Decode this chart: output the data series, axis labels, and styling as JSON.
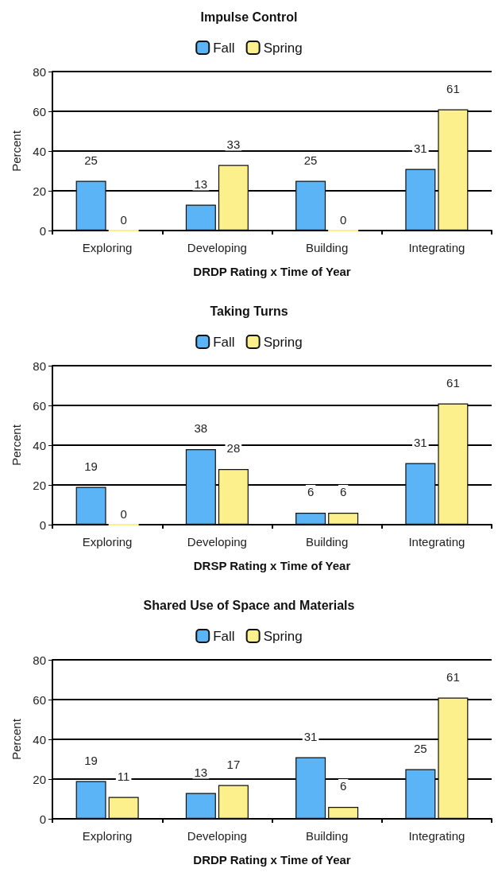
{
  "chart_data": [
    {
      "type": "bar",
      "title": "Impulse Control",
      "xlabel": "DRDP Rating x Time of Year",
      "ylabel": "Percent",
      "categories": [
        "Exploring",
        "Developing",
        "Building",
        "Integrating"
      ],
      "series": [
        {
          "name": "Fall",
          "color": "#5ab4f5",
          "values": [
            25,
            13,
            25,
            31
          ]
        },
        {
          "name": "Spring",
          "color": "#fcf08c",
          "values": [
            0,
            33,
            0,
            61
          ]
        }
      ],
      "ylim": [
        0,
        80
      ],
      "yticks": [
        0,
        20,
        40,
        60,
        80
      ],
      "grid": "y",
      "legend": "top",
      "data_labels": true
    },
    {
      "type": "bar",
      "title": "Taking Turns",
      "xlabel": "DRSP Rating x Time of Year",
      "ylabel": "Percent",
      "categories": [
        "Exploring",
        "Developing",
        "Building",
        "Integrating"
      ],
      "series": [
        {
          "name": "Fall",
          "color": "#5ab4f5",
          "values": [
            19,
            38,
            6,
            31
          ]
        },
        {
          "name": "Spring",
          "color": "#fcf08c",
          "values": [
            0,
            28,
            6,
            61
          ]
        }
      ],
      "ylim": [
        0,
        80
      ],
      "yticks": [
        0,
        20,
        40,
        60,
        80
      ],
      "grid": "y",
      "legend": "top",
      "data_labels": true
    },
    {
      "type": "bar",
      "title": "Shared Use of Space and Materials",
      "xlabel": "DRDP Rating x Time of Year",
      "ylabel": "Percent",
      "categories": [
        "Exploring",
        "Developing",
        "Building",
        "Integrating"
      ],
      "series": [
        {
          "name": "Fall",
          "color": "#5ab4f5",
          "values": [
            19,
            13,
            31,
            25
          ]
        },
        {
          "name": "Spring",
          "color": "#fcf08c",
          "values": [
            11,
            17,
            6,
            61
          ]
        }
      ],
      "ylim": [
        0,
        80
      ],
      "yticks": [
        0,
        20,
        40,
        60,
        80
      ],
      "grid": "y",
      "legend": "top",
      "data_labels": true
    }
  ]
}
